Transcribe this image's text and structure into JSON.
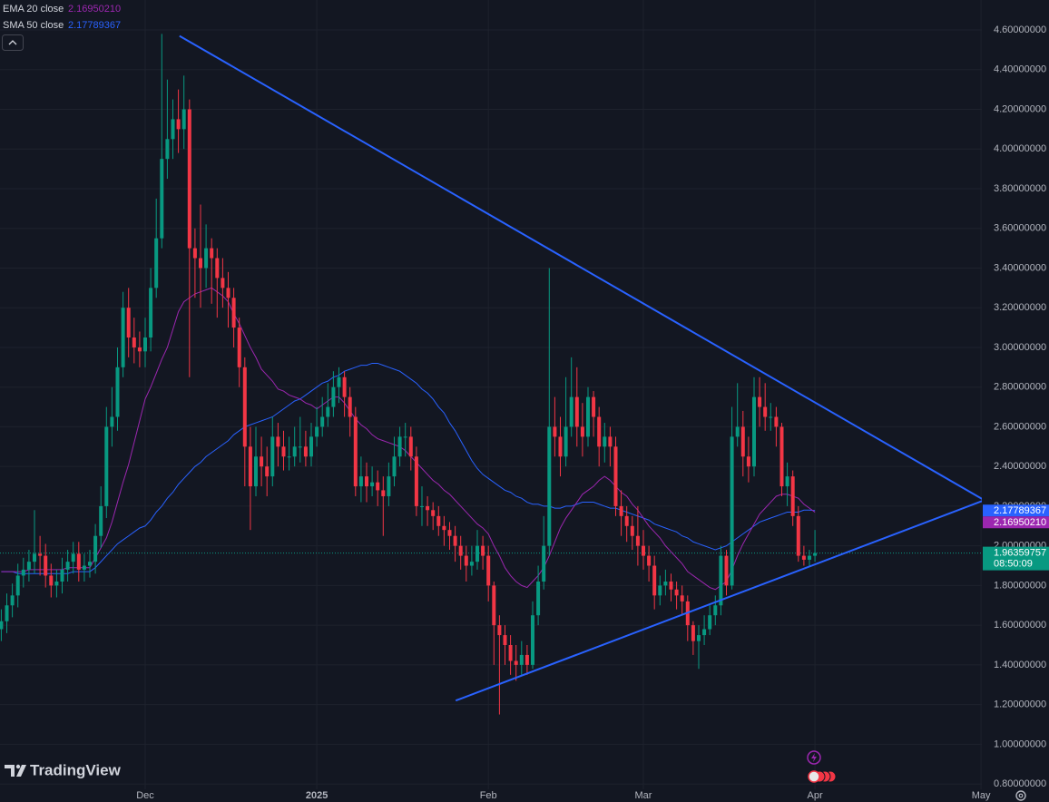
{
  "chart_data": {
    "type": "candlestick",
    "up_color": "#089981",
    "down_color": "#f23645",
    "open": [
      1.58,
      1.62,
      1.7,
      1.75,
      1.85,
      1.88,
      1.92,
      1.96,
      1.95,
      1.85,
      1.8,
      1.82,
      1.88,
      1.92,
      1.96,
      1.88,
      1.9,
      1.92,
      2.05,
      2.2,
      2.6,
      2.65,
      2.9,
      3.2,
      3.05,
      3.0,
      2.98,
      3.05,
      3.3,
      3.55,
      3.95,
      4.05,
      4.15,
      4.1,
      4.2,
      3.5,
      3.45,
      3.4,
      3.5,
      3.45,
      3.35,
      3.3,
      3.25,
      3.1,
      2.9,
      2.5,
      2.3,
      2.45,
      2.4,
      2.35,
      2.55,
      2.5,
      2.45,
      2.45,
      2.5,
      2.5,
      2.45,
      2.55,
      2.6,
      2.65,
      2.7,
      2.8,
      2.85,
      2.75,
      2.65,
      2.3,
      2.35,
      2.3,
      2.32,
      2.28,
      2.25,
      2.35,
      2.45,
      2.55,
      2.55,
      2.45,
      2.2,
      2.2,
      2.18,
      2.15,
      2.1,
      2.08,
      2.05,
      2.0,
      1.95,
      1.9,
      1.92,
      2.0,
      1.95,
      1.8,
      1.6,
      1.55,
      1.5,
      1.42,
      1.4,
      1.45,
      1.4,
      1.65,
      1.82,
      2.0,
      2.6,
      2.55,
      2.45,
      2.6,
      2.75,
      2.6,
      2.55,
      2.75,
      2.65,
      2.5,
      2.55,
      2.5,
      2.2,
      2.15,
      2.1,
      2.05,
      2.0,
      1.95,
      1.9,
      1.75,
      1.8,
      1.82,
      1.78,
      1.75,
      1.72,
      1.6,
      1.52,
      1.55,
      1.58,
      1.65,
      1.7,
      1.95,
      1.8,
      2.55,
      2.6,
      2.45,
      2.4,
      2.75,
      2.7,
      2.65,
      2.65,
      2.6,
      2.3,
      2.35,
      2.15,
      1.95,
      1.93,
      1.95
    ],
    "high": [
      1.68,
      1.76,
      1.81,
      1.91,
      1.94,
      1.98,
      2.18,
      2.05,
      2.01,
      1.91,
      1.88,
      1.94,
      1.98,
      2.02,
      2.02,
      1.96,
      1.98,
      2.11,
      2.3,
      2.7,
      2.8,
      3.0,
      3.28,
      3.3,
      3.15,
      3.08,
      3.15,
      3.4,
      3.75,
      4.58,
      4.35,
      4.25,
      4.3,
      4.37,
      4.25,
      3.6,
      3.72,
      3.62,
      3.55,
      3.5,
      3.45,
      3.38,
      3.3,
      3.15,
      2.95,
      2.6,
      2.6,
      2.55,
      2.5,
      2.65,
      2.62,
      2.58,
      2.55,
      2.6,
      2.65,
      2.58,
      2.62,
      2.7,
      2.75,
      2.82,
      2.88,
      2.9,
      2.88,
      2.8,
      2.7,
      2.45,
      2.42,
      2.4,
      2.38,
      2.35,
      2.42,
      2.55,
      2.6,
      2.62,
      2.6,
      2.5,
      2.3,
      2.25,
      2.22,
      2.2,
      2.15,
      2.12,
      2.1,
      2.05,
      2.0,
      2.0,
      2.08,
      2.05,
      2.0,
      1.82,
      1.65,
      1.6,
      1.55,
      1.5,
      1.52,
      1.5,
      1.72,
      1.9,
      2.15,
      3.4,
      2.75,
      2.65,
      2.85,
      2.95,
      2.9,
      2.72,
      2.8,
      2.78,
      2.7,
      2.62,
      2.6,
      2.55,
      2.28,
      2.2,
      2.15,
      2.2,
      2.08,
      2.0,
      1.95,
      1.85,
      1.88,
      1.86,
      1.82,
      1.8,
      1.75,
      1.62,
      1.6,
      1.65,
      1.7,
      1.75,
      2.0,
      1.98,
      2.7,
      2.82,
      2.68,
      2.55,
      2.85,
      2.85,
      2.82,
      2.72,
      2.7,
      2.62,
      2.42,
      2.38,
      2.2,
      2.0,
      1.98,
      2.08
    ],
    "low": [
      1.52,
      1.56,
      1.64,
      1.69,
      1.79,
      1.82,
      1.86,
      1.85,
      1.79,
      1.74,
      1.74,
      1.76,
      1.82,
      1.86,
      1.82,
      1.82,
      1.84,
      1.86,
      1.99,
      2.14,
      2.5,
      2.58,
      2.85,
      2.95,
      2.92,
      2.9,
      2.9,
      2.98,
      3.25,
      3.5,
      3.85,
      3.95,
      3.98,
      4.0,
      2.85,
      3.25,
      3.2,
      3.3,
      3.22,
      3.15,
      3.2,
      3.1,
      3.0,
      2.8,
      2.3,
      2.08,
      2.25,
      2.3,
      2.25,
      2.3,
      2.4,
      2.38,
      2.38,
      2.4,
      2.42,
      2.4,
      2.4,
      2.5,
      2.55,
      2.6,
      2.65,
      2.72,
      2.65,
      2.55,
      2.25,
      2.22,
      2.22,
      2.25,
      2.2,
      2.05,
      2.2,
      2.3,
      2.4,
      2.45,
      2.38,
      2.15,
      2.1,
      2.1,
      2.08,
      2.05,
      2.0,
      1.98,
      1.92,
      1.88,
      1.82,
      1.85,
      1.88,
      1.88,
      1.72,
      1.4,
      1.15,
      1.4,
      1.35,
      1.32,
      1.35,
      1.35,
      1.38,
      1.6,
      1.78,
      1.95,
      2.45,
      2.35,
      2.4,
      2.55,
      2.5,
      2.45,
      2.5,
      2.55,
      2.4,
      2.42,
      2.4,
      2.15,
      2.05,
      2.02,
      1.98,
      1.9,
      1.88,
      1.82,
      1.68,
      1.7,
      1.75,
      1.72,
      1.68,
      1.65,
      1.52,
      1.45,
      1.38,
      1.5,
      1.55,
      1.6,
      1.65,
      1.75,
      1.78,
      2.5,
      2.35,
      2.32,
      2.35,
      2.6,
      2.58,
      2.58,
      2.5,
      2.25,
      2.2,
      2.1,
      1.92,
      1.9,
      1.9,
      1.92
    ],
    "close": [
      1.62,
      1.7,
      1.75,
      1.85,
      1.88,
      1.92,
      1.96,
      1.95,
      1.85,
      1.8,
      1.82,
      1.88,
      1.92,
      1.96,
      1.88,
      1.9,
      1.92,
      2.05,
      2.2,
      2.6,
      2.65,
      2.9,
      3.2,
      3.05,
      3.0,
      2.98,
      3.05,
      3.3,
      3.55,
      3.95,
      4.05,
      4.15,
      4.1,
      4.2,
      3.5,
      3.45,
      3.4,
      3.5,
      3.45,
      3.35,
      3.3,
      3.25,
      3.1,
      2.9,
      2.5,
      2.3,
      2.45,
      2.4,
      2.35,
      2.55,
      2.5,
      2.45,
      2.45,
      2.5,
      2.5,
      2.45,
      2.55,
      2.6,
      2.65,
      2.7,
      2.8,
      2.85,
      2.75,
      2.65,
      2.3,
      2.35,
      2.3,
      2.32,
      2.28,
      2.25,
      2.35,
      2.45,
      2.55,
      2.55,
      2.45,
      2.2,
      2.2,
      2.18,
      2.15,
      2.1,
      2.08,
      2.05,
      2.0,
      1.95,
      1.9,
      1.92,
      2.0,
      1.95,
      1.8,
      1.6,
      1.55,
      1.5,
      1.42,
      1.4,
      1.45,
      1.4,
      1.65,
      1.82,
      2.0,
      2.6,
      2.55,
      2.45,
      2.6,
      2.75,
      2.6,
      2.55,
      2.75,
      2.65,
      2.5,
      2.55,
      2.5,
      2.2,
      2.15,
      2.1,
      2.05,
      2.0,
      1.95,
      1.9,
      1.75,
      1.8,
      1.82,
      1.78,
      1.75,
      1.72,
      1.6,
      1.52,
      1.55,
      1.58,
      1.65,
      1.7,
      1.95,
      1.8,
      2.55,
      2.6,
      2.45,
      2.4,
      2.75,
      2.7,
      2.65,
      2.65,
      2.6,
      2.3,
      2.35,
      2.15,
      1.95,
      1.93,
      1.95,
      1.96359757
    ],
    "countdown": "08:50:09",
    "series": [
      {
        "name": "EMA 20 close",
        "color": "#9c27b0",
        "last_label": "2.16950210",
        "values": [
          1.87,
          1.87,
          1.87,
          1.87,
          1.87,
          1.88,
          1.88,
          1.88,
          1.88,
          1.88,
          1.88,
          1.88,
          1.89,
          1.89,
          1.89,
          1.89,
          1.89,
          1.94,
          1.99,
          2.04,
          2.12,
          2.22,
          2.32,
          2.41,
          2.52,
          2.63,
          2.74,
          2.8,
          2.87,
          2.94,
          3.0,
          3.09,
          3.18,
          3.23,
          3.25,
          3.27,
          3.28,
          3.29,
          3.3,
          3.28,
          3.26,
          3.23,
          3.17,
          3.12,
          3.06,
          3.0,
          2.95,
          2.89,
          2.86,
          2.83,
          2.79,
          2.78,
          2.76,
          2.75,
          2.74,
          2.72,
          2.71,
          2.69,
          2.71,
          2.73,
          2.75,
          2.75,
          2.72,
          2.68,
          2.64,
          2.61,
          2.59,
          2.56,
          2.54,
          2.53,
          2.52,
          2.51,
          2.5,
          2.48,
          2.45,
          2.42,
          2.39,
          2.36,
          2.33,
          2.31,
          2.28,
          2.26,
          2.23,
          2.2,
          2.17,
          2.14,
          2.11,
          2.09,
          2.06,
          2.0,
          1.95,
          1.89,
          1.85,
          1.82,
          1.8,
          1.79,
          1.82,
          1.85,
          1.89,
          1.95,
          2.02,
          2.09,
          2.14,
          2.18,
          2.22,
          2.26,
          2.28,
          2.3,
          2.33,
          2.35,
          2.33,
          2.3,
          2.27,
          2.25,
          2.21,
          2.18,
          2.14,
          2.1,
          2.07,
          2.04,
          2.0,
          1.97,
          1.94,
          1.91,
          1.87,
          1.85,
          1.83,
          1.81,
          1.79,
          1.78,
          1.8,
          1.82,
          1.88,
          1.95,
          2.01,
          2.06,
          2.11,
          2.16,
          2.19,
          2.22,
          2.25,
          2.26,
          2.26,
          2.25,
          2.24,
          2.21,
          2.19,
          2.1695021
        ]
      },
      {
        "name": "SMA 50 close",
        "color": "#2962ff",
        "last_label": "2.17789367",
        "values": [
          1.87,
          1.87,
          1.87,
          1.86,
          1.86,
          1.86,
          1.86,
          1.86,
          1.86,
          1.86,
          1.86,
          1.86,
          1.86,
          1.87,
          1.87,
          1.87,
          1.87,
          1.89,
          1.92,
          1.95,
          1.98,
          2.01,
          2.03,
          2.05,
          2.07,
          2.09,
          2.1,
          2.13,
          2.17,
          2.2,
          2.24,
          2.27,
          2.31,
          2.34,
          2.37,
          2.4,
          2.42,
          2.45,
          2.47,
          2.49,
          2.51,
          2.53,
          2.56,
          2.58,
          2.6,
          2.61,
          2.62,
          2.63,
          2.64,
          2.65,
          2.67,
          2.69,
          2.71,
          2.73,
          2.74,
          2.76,
          2.78,
          2.8,
          2.82,
          2.83,
          2.85,
          2.86,
          2.88,
          2.89,
          2.9,
          2.91,
          2.91,
          2.92,
          2.92,
          2.91,
          2.9,
          2.89,
          2.88,
          2.86,
          2.84,
          2.82,
          2.79,
          2.77,
          2.74,
          2.7,
          2.67,
          2.62,
          2.58,
          2.53,
          2.48,
          2.43,
          2.39,
          2.36,
          2.34,
          2.32,
          2.3,
          2.28,
          2.27,
          2.25,
          2.24,
          2.22,
          2.21,
          2.21,
          2.2,
          2.2,
          2.19,
          2.19,
          2.2,
          2.2,
          2.21,
          2.22,
          2.22,
          2.22,
          2.21,
          2.2,
          2.19,
          2.19,
          2.18,
          2.17,
          2.16,
          2.15,
          2.14,
          2.13,
          2.11,
          2.1,
          2.09,
          2.08,
          2.07,
          2.05,
          2.04,
          2.02,
          2.01,
          2.0,
          1.99,
          1.98,
          1.99,
          2.0,
          2.02,
          2.04,
          2.06,
          2.08,
          2.1,
          2.12,
          2.13,
          2.14,
          2.15,
          2.16,
          2.17,
          2.17,
          2.17,
          2.18,
          2.18,
          2.17789367
        ]
      }
    ],
    "trend_lines": [
      {
        "color": "#2962ff",
        "x": [
          32.2,
          177.6
        ],
        "y": [
          4.57,
          2.23
        ]
      },
      {
        "color": "#2962ff",
        "x": [
          82.1,
          177.6
        ],
        "y": [
          1.22,
          2.23
        ]
      }
    ],
    "xlim": [
      -0.23,
      177.15
    ],
    "ylim": [
      0.773,
      4.751
    ],
    "xticks": [
      {
        "value": 26,
        "label": "Dec"
      },
      {
        "value": 57,
        "label": "2025"
      },
      {
        "value": 88,
        "label": "Feb"
      },
      {
        "value": 116,
        "label": "Mar"
      },
      {
        "value": 147,
        "label": "Apr"
      },
      {
        "value": 177,
        "label": "May"
      }
    ],
    "yticks": [
      {
        "value": 0.8,
        "label": "0.80000000"
      },
      {
        "value": 1.0,
        "label": "1.00000000"
      },
      {
        "value": 1.2,
        "label": "1.20000000"
      },
      {
        "value": 1.4,
        "label": "1.40000000"
      },
      {
        "value": 1.6,
        "label": "1.60000000"
      },
      {
        "value": 1.8,
        "label": "1.80000000"
      },
      {
        "value": 2.0,
        "label": "2.00000000"
      },
      {
        "value": 2.2,
        "label": "2.20000000"
      },
      {
        "value": 2.4,
        "label": "2.40000000"
      },
      {
        "value": 2.6,
        "label": "2.60000000"
      },
      {
        "value": 2.8,
        "label": "2.80000000"
      },
      {
        "value": 3.0,
        "label": "3.00000000"
      },
      {
        "value": 3.2,
        "label": "3.20000000"
      },
      {
        "value": 3.4,
        "label": "3.40000000"
      },
      {
        "value": 3.6,
        "label": "3.60000000"
      },
      {
        "value": 3.8,
        "label": "3.80000000"
      },
      {
        "value": 4.0,
        "label": "4.00000000"
      },
      {
        "value": 4.2,
        "label": "4.20000000"
      },
      {
        "value": 4.4,
        "label": "4.40000000"
      },
      {
        "value": 4.6,
        "label": "4.60000000"
      }
    ],
    "grid": true,
    "brand": "TradingView"
  }
}
